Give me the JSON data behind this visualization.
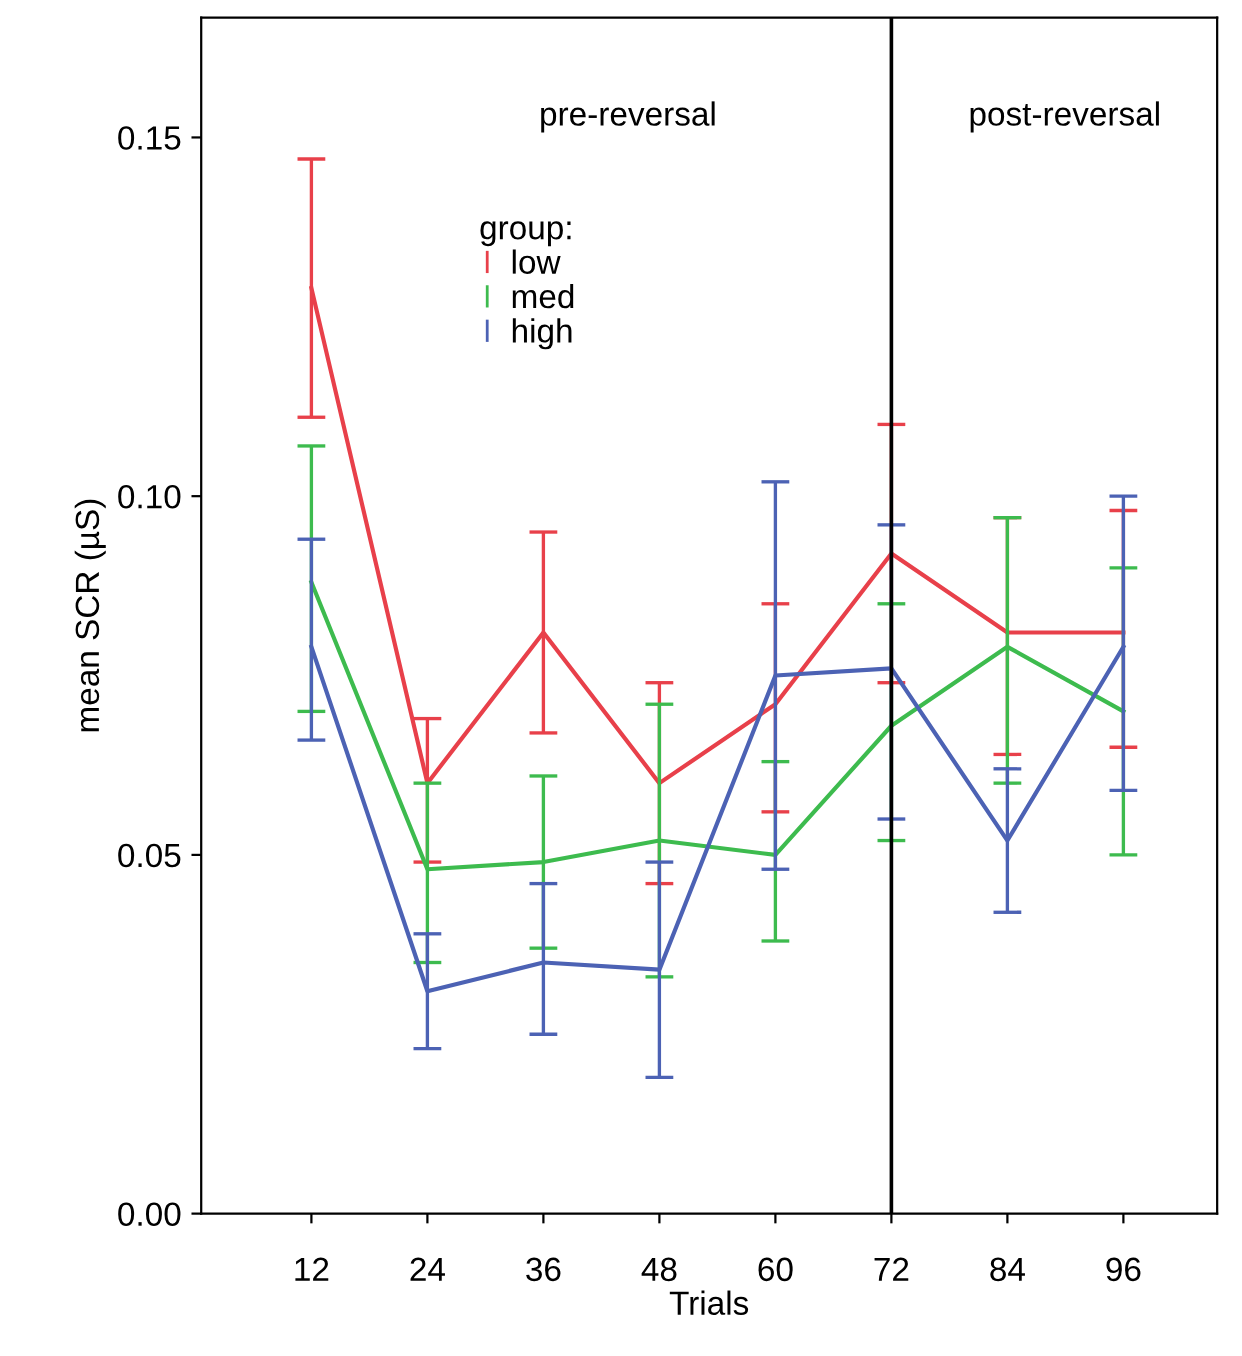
{
  "chart_data": {
    "type": "line",
    "xlabel": "Trials",
    "ylabel": "mean SCR (µS)",
    "legend_title": "group:",
    "x": [
      12,
      24,
      36,
      48,
      60,
      72,
      84,
      96
    ],
    "xlim": [
      0.6,
      105.7
    ],
    "xticks": [
      12,
      24,
      36,
      48,
      60,
      72,
      84,
      96
    ],
    "ylim": [
      0,
      0.1667
    ],
    "yticks": [
      {
        "value": 0,
        "label": "0.00"
      },
      {
        "value": 0.05,
        "label": "0.05"
      },
      {
        "value": 0.1,
        "label": "0.10"
      },
      {
        "value": 0.15,
        "label": "0.15"
      }
    ],
    "series": [
      {
        "name": "low",
        "color": "#e8404a",
        "values": [
          0.129,
          0.06,
          0.081,
          0.06,
          0.071,
          0.092,
          0.081,
          0.081
        ],
        "errors": [
          [
            0.111,
            0.147
          ],
          [
            0.049,
            0.069
          ],
          [
            0.067,
            0.095
          ],
          [
            0.046,
            0.074
          ],
          [
            0.056,
            0.085
          ],
          [
            0.074,
            0.11
          ],
          [
            0.064,
            0.097
          ],
          [
            0.065,
            0.098
          ]
        ]
      },
      {
        "name": "med",
        "color": "#3dbb4e",
        "values": [
          0.088,
          0.048,
          0.049,
          0.052,
          0.05,
          0.068,
          0.079,
          0.07
        ],
        "errors": [
          [
            0.07,
            0.107
          ],
          [
            0.035,
            0.06
          ],
          [
            0.037,
            0.061
          ],
          [
            0.033,
            0.071
          ],
          [
            0.038,
            0.063
          ],
          [
            0.052,
            0.085
          ],
          [
            0.06,
            0.097
          ],
          [
            0.05,
            0.09
          ]
        ]
      },
      {
        "name": "high",
        "color": "#4c62b4",
        "values": [
          0.079,
          0.031,
          0.035,
          0.034,
          0.075,
          0.076,
          0.052,
          0.079
        ],
        "errors": [
          [
            0.066,
            0.094
          ],
          [
            0.023,
            0.039
          ],
          [
            0.025,
            0.046
          ],
          [
            0.019,
            0.049
          ],
          [
            0.048,
            0.102
          ],
          [
            0.055,
            0.096
          ],
          [
            0.042,
            0.062
          ],
          [
            0.059,
            0.1
          ]
        ]
      }
    ],
    "ref_lines": [
      {
        "axis": "x",
        "value": 72,
        "color": "#000000"
      }
    ],
    "annotations": [
      "pre-reversal",
      "post-reversal"
    ],
    "legend": "top",
    "grid": false,
    "marker": "none",
    "line_style": "solid"
  }
}
